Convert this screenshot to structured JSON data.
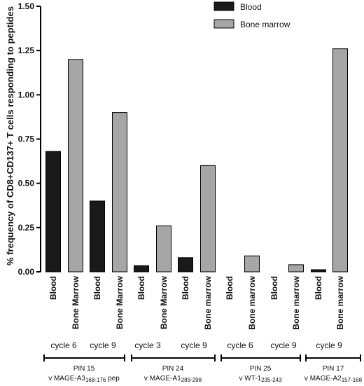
{
  "chart_data": {
    "type": "bar",
    "ylabel": "% frequency of CD8+CD137+ T cells responding to peptides",
    "ylim": [
      0,
      1.5
    ],
    "yticks": [
      "0.00",
      "0.25",
      "0.50",
      "0.75",
      "1.00",
      "1.25",
      "1.50"
    ],
    "ytick_values": [
      0,
      0.25,
      0.5,
      0.75,
      1.0,
      1.25,
      1.5
    ],
    "legend": [
      {
        "name": "Blood",
        "color": "#1a1a1a"
      },
      {
        "name": "Bone marrow",
        "color": "#a6a6a6"
      }
    ],
    "bars": [
      {
        "label": "Blood",
        "value": 0.68,
        "series": "Blood"
      },
      {
        "label": "Bone Marrow",
        "value": 1.2,
        "series": "Bone marrow"
      },
      {
        "label": "Blood",
        "value": 0.4,
        "series": "Blood"
      },
      {
        "label": "Bone Marrow",
        "value": 0.9,
        "series": "Bone marrow"
      },
      {
        "label": "Blood",
        "value": 0.035,
        "series": "Blood"
      },
      {
        "label": "Bone Marrow",
        "value": 0.26,
        "series": "Bone marrow"
      },
      {
        "label": "Blood",
        "value": 0.08,
        "series": "Blood"
      },
      {
        "label": "Bone marrow",
        "value": 0.6,
        "series": "Bone marrow"
      },
      {
        "label": "Blood",
        "value": 0.0,
        "series": "Blood"
      },
      {
        "label": "Bone marrow",
        "value": 0.09,
        "series": "Bone marrow"
      },
      {
        "label": "Blood",
        "value": 0.0,
        "series": "Blood"
      },
      {
        "label": "Bone marrow",
        "value": 0.04,
        "series": "Bone marrow"
      },
      {
        "label": "Blood",
        "value": 0.012,
        "series": "Blood"
      },
      {
        "label": "Bone marrow",
        "value": 1.26,
        "series": "Bone marrow"
      }
    ],
    "cycles": [
      "cycle 6",
      "cycle 9",
      "cycle 3",
      "cycle 9",
      "cycle 6",
      "cycle 9",
      "cycle 9"
    ],
    "patients": [
      {
        "pin": "PIN 15",
        "vaccine": "v MAGE-A3",
        "sub": "168-176",
        "suffix": " pep"
      },
      {
        "pin": "PIN 24",
        "vaccine": "v MAGE-A1",
        "sub": "289-298",
        "suffix": ""
      },
      {
        "pin": "PIN 25",
        "vaccine": "v WT-1",
        "sub": "235-243",
        "suffix": ""
      },
      {
        "pin": "PIN 17",
        "vaccine": "v MAGE-A2",
        "sub": "157-168",
        "suffix": ""
      }
    ]
  }
}
